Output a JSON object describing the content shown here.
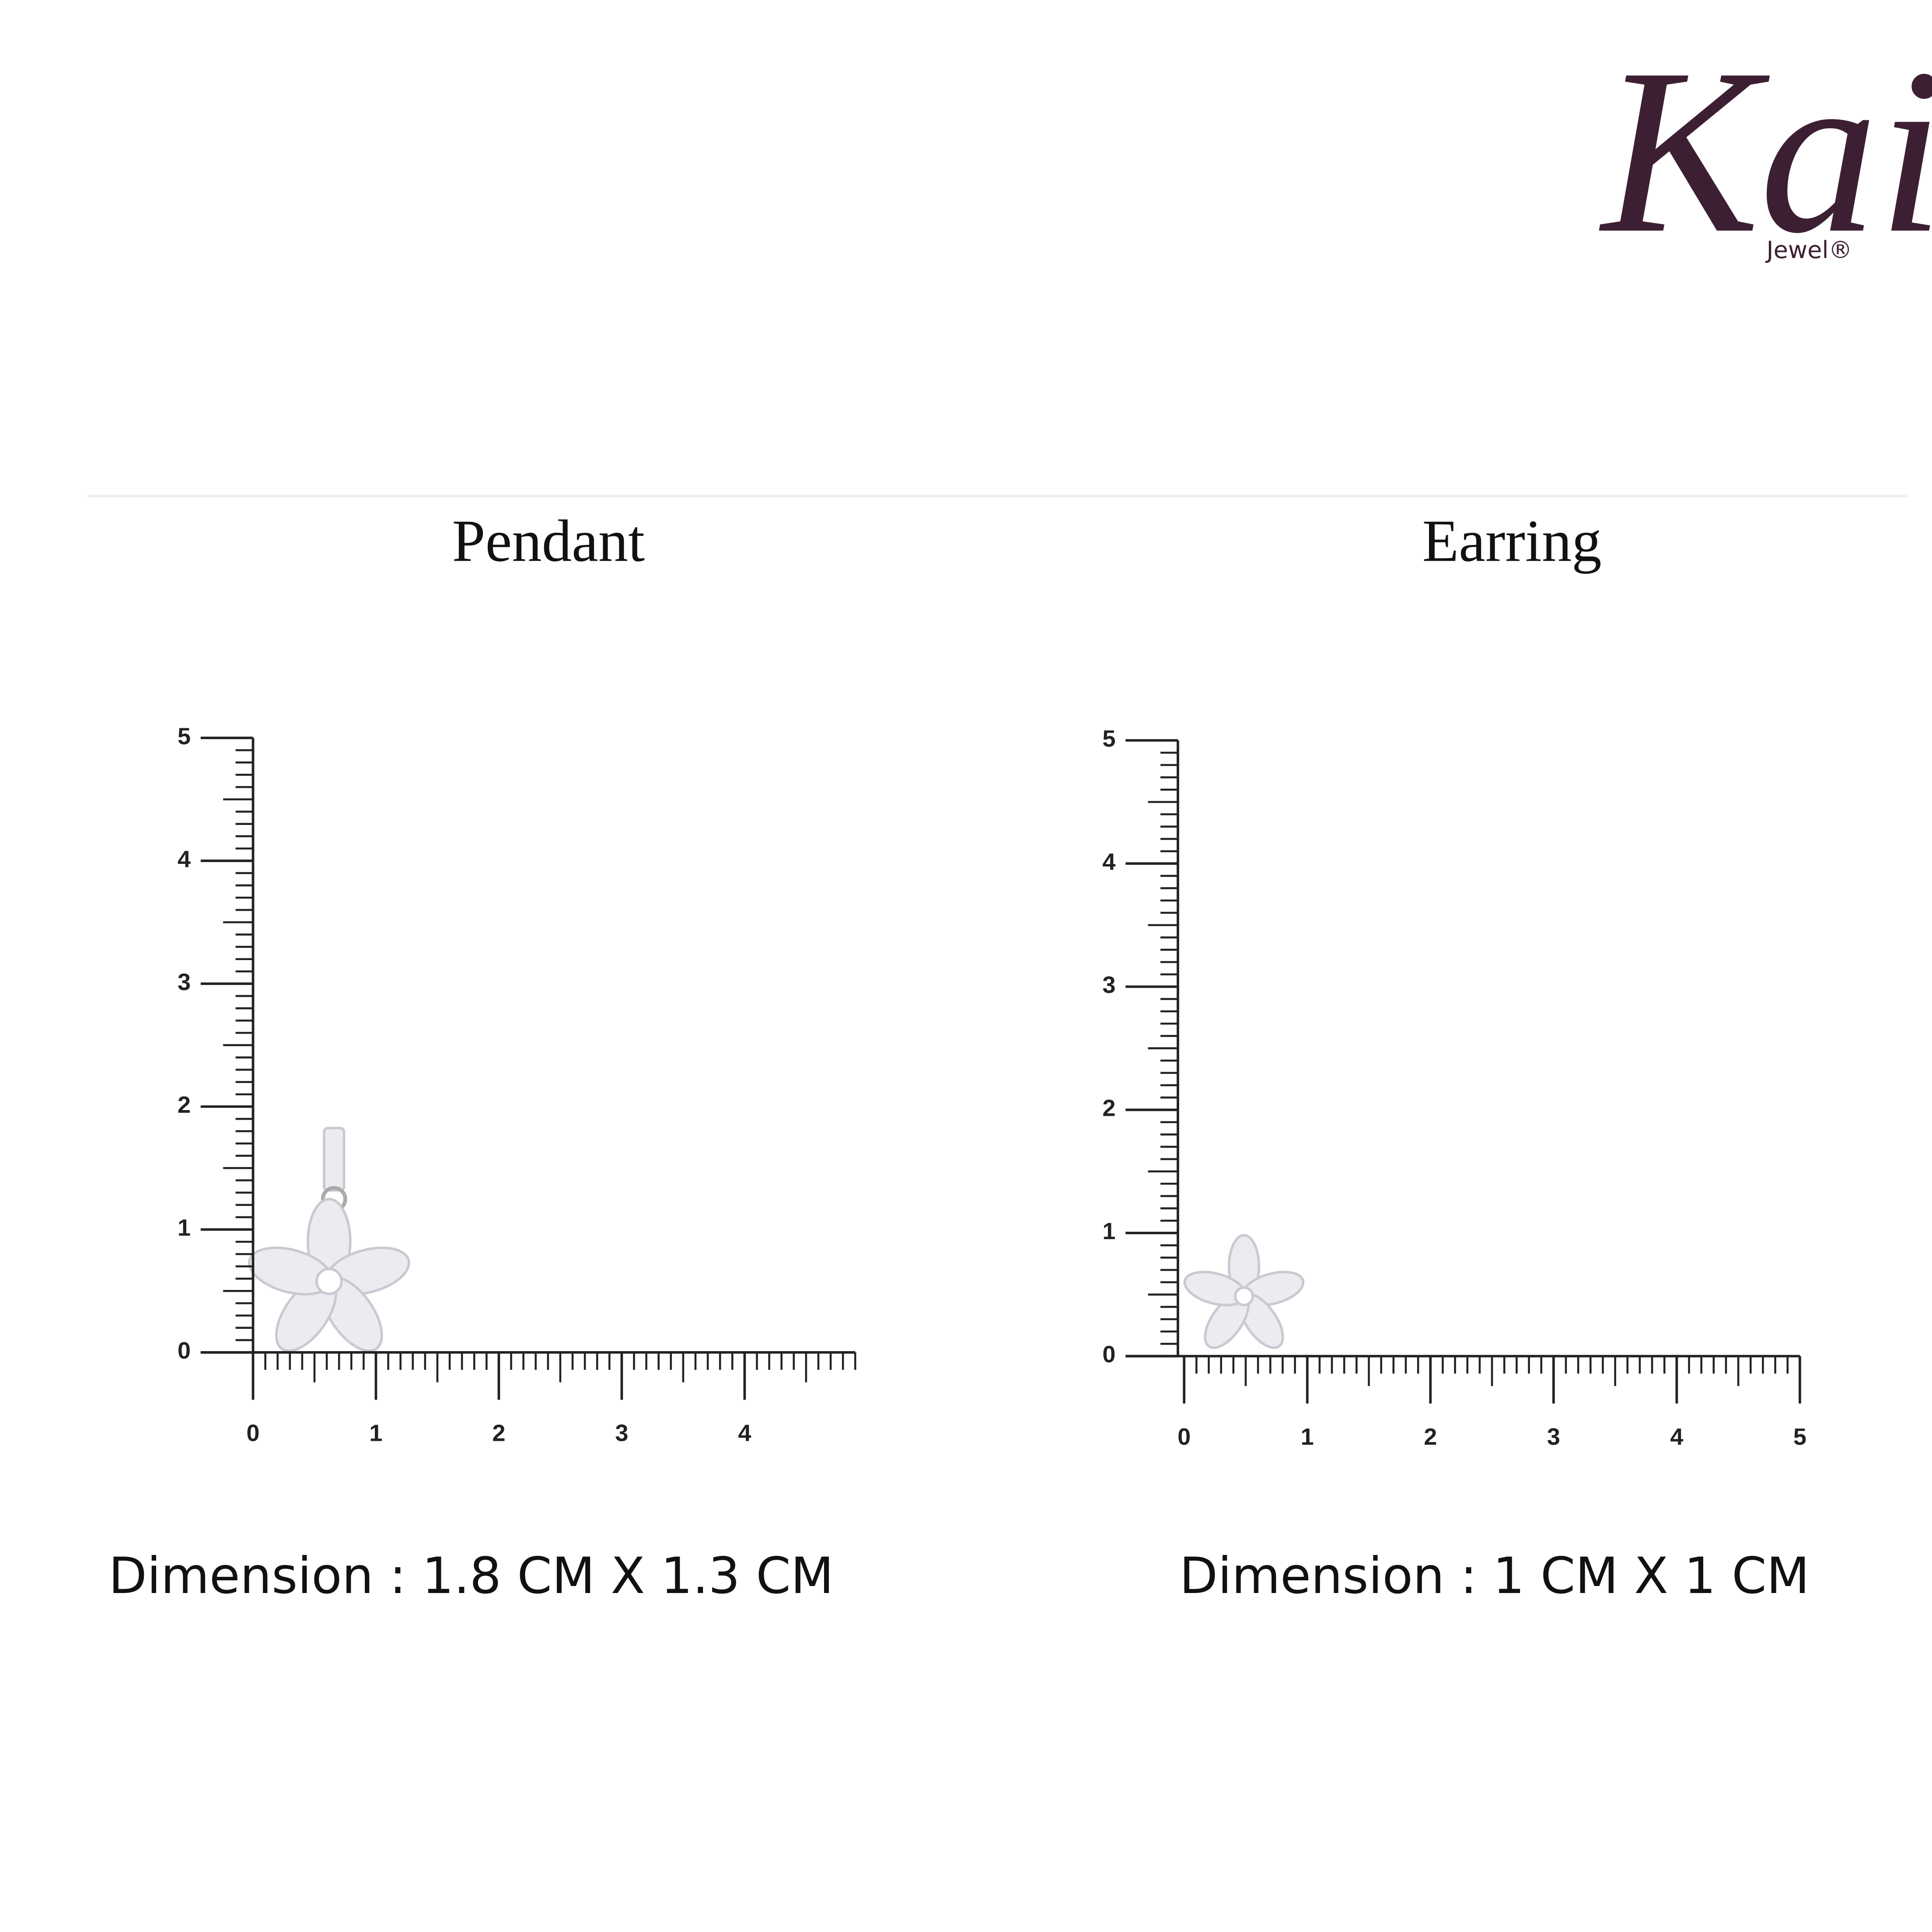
{
  "logo": {
    "brand": "Kai",
    "sub": "Jewel®"
  },
  "panels": [
    {
      "title": "Pendant",
      "yticks": [
        0,
        1,
        2,
        3,
        4,
        5
      ],
      "xticks": [
        0,
        1,
        2,
        3,
        4
      ],
      "dimension": "Dimension : 1.8 CM X 1.3 CM"
    },
    {
      "title": "Earring",
      "yticks": [
        0,
        1,
        2,
        3,
        4,
        5
      ],
      "xticks": [
        0,
        1,
        2,
        3,
        4,
        5
      ],
      "dimension": "Dimension : 1 CM X 1 CM"
    }
  ]
}
